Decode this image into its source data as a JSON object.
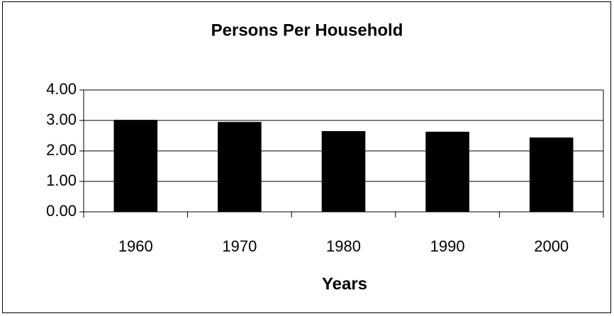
{
  "chart_data": {
    "type": "bar",
    "title": "Persons Per Household",
    "x_label": "Years",
    "categories": [
      "1960",
      "1970",
      "1980",
      "1990",
      "2000"
    ],
    "values": [
      3.02,
      2.95,
      2.65,
      2.63,
      2.44
    ],
    "color": "#000000",
    "ylim": [
      0,
      4
    ],
    "yticks": [
      {
        "value": 0,
        "label": "0.00"
      },
      {
        "value": 1,
        "label": "1.00"
      },
      {
        "value": 2,
        "label": "2.00"
      },
      {
        "value": 3,
        "label": "3.00"
      },
      {
        "value": 4,
        "label": "4.00"
      }
    ],
    "grid": true
  }
}
